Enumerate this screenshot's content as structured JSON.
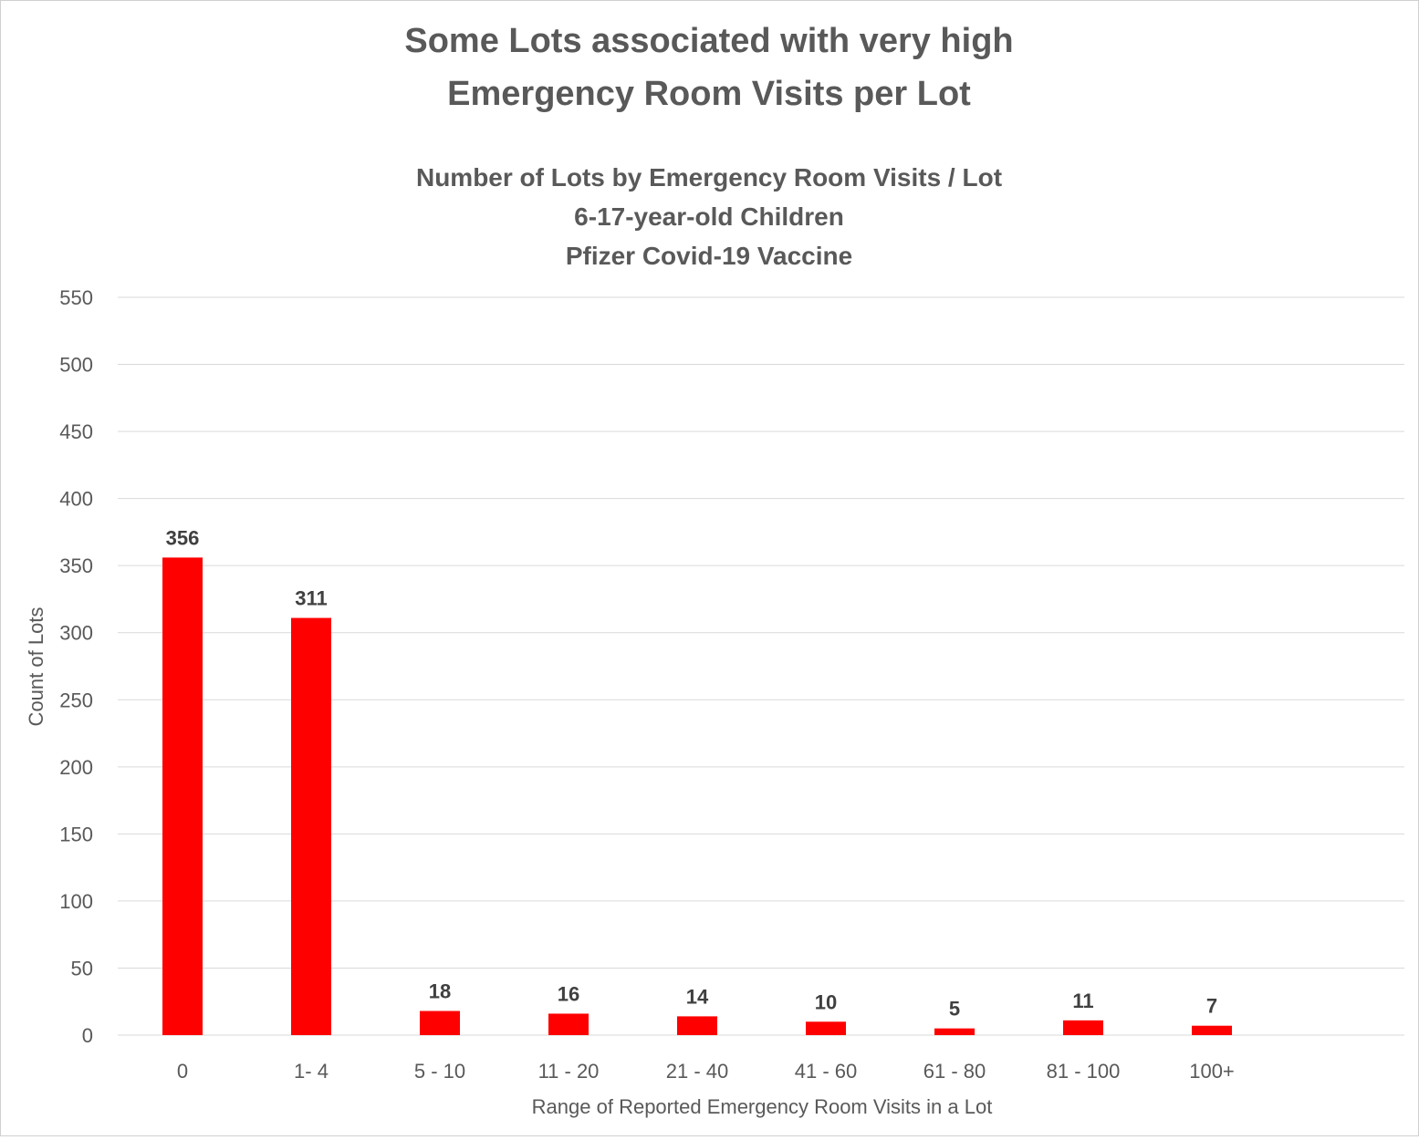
{
  "chart_data": {
    "type": "bar",
    "title_lines": [
      "Some Lots associated with very high",
      "Emergency Room Visits per Lot"
    ],
    "subtitle_lines": [
      "Number of Lots by Emergency Room Visits / Lot",
      "6-17-year-old Children",
      "Pfizer Covid-19 Vaccine"
    ],
    "xlabel": "Range of Reported Emergency Room Visits in a Lot",
    "ylabel": "Count of Lots",
    "categories": [
      "0",
      "1- 4",
      "5 - 10",
      "11 - 20",
      "21 - 40",
      "41 - 60",
      "61 - 80",
      "81 - 100",
      "100+"
    ],
    "values": [
      356,
      311,
      18,
      16,
      14,
      10,
      5,
      11,
      7
    ],
    "data_labels": [
      "356",
      "311",
      "18",
      "16",
      "14",
      "10",
      "5",
      "11",
      "7"
    ],
    "ylim": [
      0,
      550
    ],
    "yticks": [
      0,
      50,
      100,
      150,
      200,
      250,
      300,
      350,
      400,
      450,
      500,
      550
    ],
    "grid": true,
    "legend": "none",
    "bar_color": "#ff0000"
  }
}
